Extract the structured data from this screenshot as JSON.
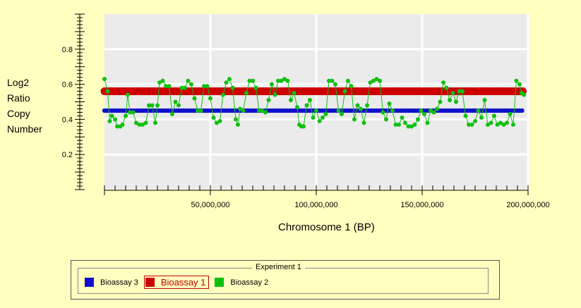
{
  "chart_data": {
    "type": "scatter",
    "ylabel": "Log2\nRatio\nCopy\nNumber",
    "xlabel": "Chromosome 1 (BP)",
    "xlim": [
      0,
      200000000
    ],
    "ylim": [
      0,
      1.0
    ],
    "x_ticks": [
      50000000,
      100000000,
      150000000,
      200000000
    ],
    "x_tick_labels": [
      "50,000,000",
      "100,000,000",
      "150,000,000",
      "200,000,000"
    ],
    "y_ticks": [
      0.2,
      0.4,
      0.6,
      0.8
    ],
    "y_tick_labels": [
      "0.2",
      "0.4",
      "0.6",
      "0.8"
    ],
    "grid": true,
    "plot_background": "#ebebeb",
    "legend_title": "Experiment 1",
    "legend_position": "bottom",
    "series": [
      {
        "name": "Bioassay 3",
        "color": "#1010cc",
        "style": "constant",
        "value": 0.45,
        "x_range": [
          0,
          198000000
        ]
      },
      {
        "name": "Bioassay 1",
        "color": "#cc0000",
        "style": "constant",
        "value": 0.56,
        "x_range": [
          0,
          198000000
        ],
        "selected": true
      },
      {
        "name": "Bioassay 2",
        "color": "#10c010",
        "style": "line-points",
        "points": [
          [
            0,
            0.63
          ],
          [
            1500000,
            0.56
          ],
          [
            2500000,
            0.39
          ],
          [
            3500000,
            0.42
          ],
          [
            5000000,
            0.4
          ],
          [
            6000000,
            0.36
          ],
          [
            7500000,
            0.36
          ],
          [
            8500000,
            0.37
          ],
          [
            10000000,
            0.42
          ],
          [
            11000000,
            0.54
          ],
          [
            12000000,
            0.44
          ],
          [
            13500000,
            0.44
          ],
          [
            15000000,
            0.38
          ],
          [
            16500000,
            0.37
          ],
          [
            18000000,
            0.37
          ],
          [
            19500000,
            0.38
          ],
          [
            21000000,
            0.48
          ],
          [
            22500000,
            0.48
          ],
          [
            24000000,
            0.38
          ],
          [
            25000000,
            0.48
          ],
          [
            26000000,
            0.61
          ],
          [
            27500000,
            0.62
          ],
          [
            29000000,
            0.59
          ],
          [
            30500000,
            0.59
          ],
          [
            32000000,
            0.43
          ],
          [
            33500000,
            0.5
          ],
          [
            35000000,
            0.48
          ],
          [
            36500000,
            0.58
          ],
          [
            38000000,
            0.58
          ],
          [
            39500000,
            0.62
          ],
          [
            41000000,
            0.6
          ],
          [
            42500000,
            0.52
          ],
          [
            44000000,
            0.45
          ],
          [
            45500000,
            0.45
          ],
          [
            47000000,
            0.59
          ],
          [
            48500000,
            0.59
          ],
          [
            50000000,
            0.52
          ],
          [
            51500000,
            0.41
          ],
          [
            53000000,
            0.38
          ],
          [
            54500000,
            0.39
          ],
          [
            56000000,
            0.54
          ],
          [
            57500000,
            0.61
          ],
          [
            59000000,
            0.63
          ],
          [
            60500000,
            0.58
          ],
          [
            62000000,
            0.4
          ],
          [
            63000000,
            0.37
          ],
          [
            64000000,
            0.46
          ],
          [
            65500000,
            0.45
          ],
          [
            67000000,
            0.55
          ],
          [
            68500000,
            0.62
          ],
          [
            70000000,
            0.62
          ],
          [
            71500000,
            0.58
          ],
          [
            73000000,
            0.45
          ],
          [
            74500000,
            0.45
          ],
          [
            76000000,
            0.44
          ],
          [
            77500000,
            0.51
          ],
          [
            79000000,
            0.6
          ],
          [
            80500000,
            0.54
          ],
          [
            82000000,
            0.62
          ],
          [
            83500000,
            0.62
          ],
          [
            85000000,
            0.63
          ],
          [
            86500000,
            0.62
          ],
          [
            88000000,
            0.51
          ],
          [
            89500000,
            0.55
          ],
          [
            91000000,
            0.47
          ],
          [
            92000000,
            0.37
          ],
          [
            93000000,
            0.36
          ],
          [
            94000000,
            0.36
          ],
          [
            95500000,
            0.48
          ],
          [
            97000000,
            0.51
          ],
          [
            98500000,
            0.41
          ],
          [
            100000000,
            0.45
          ],
          [
            101500000,
            0.39
          ],
          [
            103000000,
            0.41
          ],
          [
            104500000,
            0.43
          ],
          [
            106000000,
            0.62
          ],
          [
            107500000,
            0.62
          ],
          [
            109000000,
            0.6
          ],
          [
            110500000,
            0.45
          ],
          [
            112000000,
            0.43
          ],
          [
            113500000,
            0.56
          ],
          [
            115000000,
            0.62
          ],
          [
            116500000,
            0.59
          ],
          [
            118000000,
            0.4
          ],
          [
            119500000,
            0.48
          ],
          [
            121000000,
            0.46
          ],
          [
            122500000,
            0.38
          ],
          [
            124000000,
            0.48
          ],
          [
            125500000,
            0.61
          ],
          [
            127000000,
            0.62
          ],
          [
            128500000,
            0.63
          ],
          [
            130000000,
            0.62
          ],
          [
            131500000,
            0.44
          ],
          [
            133000000,
            0.4
          ],
          [
            134500000,
            0.49
          ],
          [
            136000000,
            0.45
          ],
          [
            137500000,
            0.37
          ],
          [
            139000000,
            0.37
          ],
          [
            140500000,
            0.41
          ],
          [
            142000000,
            0.38
          ],
          [
            143500000,
            0.36
          ],
          [
            145000000,
            0.36
          ],
          [
            146500000,
            0.37
          ],
          [
            148000000,
            0.4
          ],
          [
            149500000,
            0.45
          ],
          [
            151000000,
            0.43
          ],
          [
            152500000,
            0.38
          ],
          [
            154000000,
            0.45
          ],
          [
            155500000,
            0.44
          ],
          [
            157000000,
            0.46
          ],
          [
            158500000,
            0.5
          ],
          [
            160000000,
            0.61
          ],
          [
            161500000,
            0.58
          ],
          [
            163000000,
            0.51
          ],
          [
            164500000,
            0.55
          ],
          [
            166000000,
            0.5
          ],
          [
            167500000,
            0.56
          ],
          [
            169000000,
            0.56
          ],
          [
            170500000,
            0.42
          ],
          [
            172000000,
            0.37
          ],
          [
            173500000,
            0.37
          ],
          [
            175000000,
            0.39
          ],
          [
            176500000,
            0.45
          ],
          [
            178000000,
            0.41
          ],
          [
            179500000,
            0.51
          ],
          [
            181000000,
            0.37
          ],
          [
            182500000,
            0.38
          ],
          [
            184000000,
            0.42
          ],
          [
            185500000,
            0.37
          ],
          [
            187000000,
            0.38
          ],
          [
            188500000,
            0.37
          ],
          [
            190000000,
            0.38
          ],
          [
            191500000,
            0.43
          ],
          [
            193000000,
            0.37
          ],
          [
            194500000,
            0.62
          ],
          [
            196000000,
            0.6
          ],
          [
            197000000,
            0.55
          ],
          [
            198000000,
            0.54
          ]
        ]
      }
    ]
  }
}
